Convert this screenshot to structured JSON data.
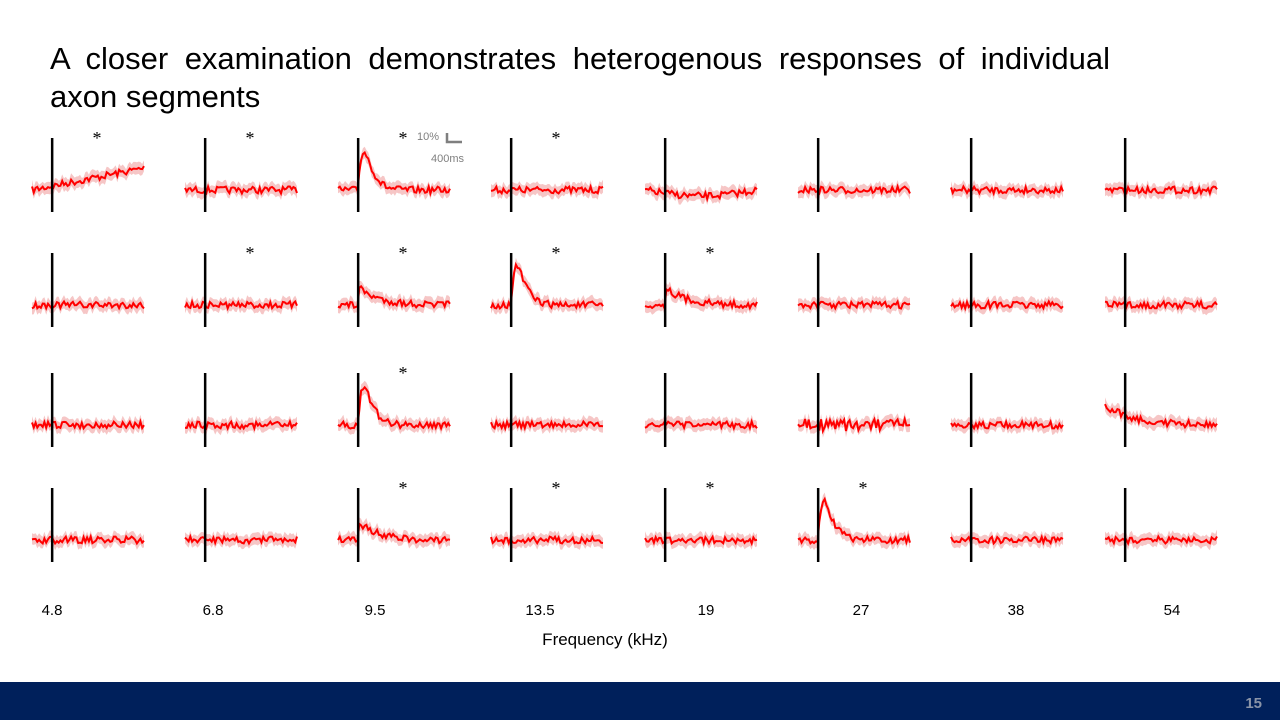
{
  "slide": {
    "title": "A closer examination demonstrates heterogenous responses of individual axon segments",
    "page_number": "15"
  },
  "scale_bar": {
    "amplitude_label": "10%",
    "time_label": "400ms"
  },
  "chart_data": {
    "type": "line",
    "title": "A closer examination demonstrates heterogenous responses of individual axon segments",
    "xlabel": "Frequency (kHz)",
    "frequencies": [
      "4.8",
      "6.8",
      "9.5",
      "13.5",
      "19",
      "27",
      "38",
      "54"
    ],
    "rows": 4,
    "significance_marker": "*",
    "significant": [
      [
        true,
        true,
        true,
        true,
        false,
        false,
        false,
        false
      ],
      [
        false,
        true,
        true,
        true,
        true,
        false,
        false,
        false
      ],
      [
        false,
        false,
        true,
        false,
        false,
        false,
        false,
        false
      ],
      [
        false,
        false,
        true,
        true,
        true,
        true,
        false,
        false
      ]
    ],
    "response_profile": [
      [
        "ramp",
        "flat",
        "peak",
        "flat",
        "dip",
        "flat",
        "flat",
        "flat"
      ],
      [
        "flat",
        "flat",
        "small",
        "peak",
        "small",
        "flat",
        "flat",
        "flat"
      ],
      [
        "flat",
        "flat",
        "peak",
        "flat",
        "flat",
        "noisy",
        "flat",
        "decay"
      ],
      [
        "flat",
        "flat",
        "small",
        "flat",
        "flat",
        "peak",
        "flat",
        "flat"
      ]
    ],
    "line_color": "#ff0000",
    "band_color": "#f4b8b8",
    "stimulus_marker_color": "#000000"
  }
}
